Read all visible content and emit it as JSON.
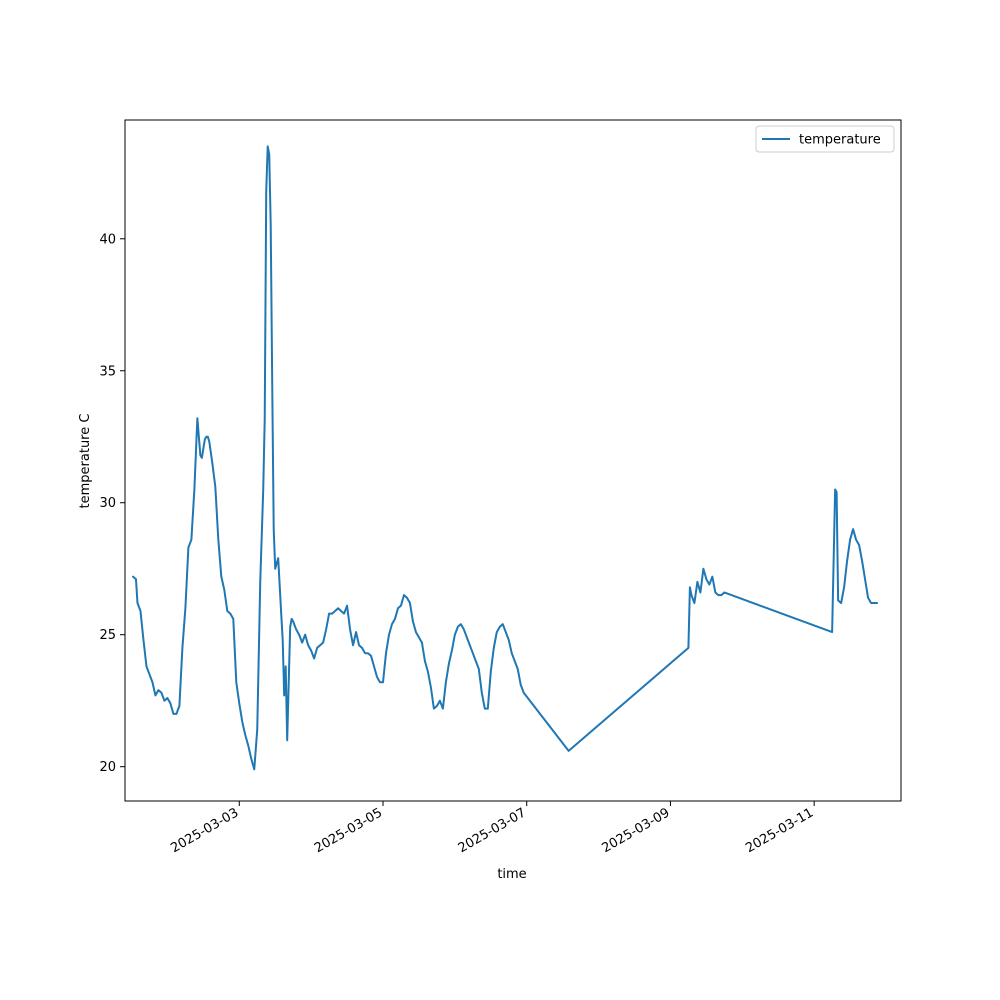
{
  "chart_data": {
    "type": "line",
    "xlabel": "time",
    "ylabel": "temperature C",
    "xlim": [
      "2025-03-01T09:50",
      "2025-03-12T05:00"
    ],
    "ylim": [
      18.7,
      44.5
    ],
    "x_ticks": [
      "2025-03-03",
      "2025-03-05",
      "2025-03-07",
      "2025-03-09",
      "2025-03-11"
    ],
    "y_ticks": [
      20,
      25,
      30,
      35,
      40
    ],
    "grid": false,
    "legend": {
      "position": "top-right",
      "entries": [
        "temperature"
      ]
    },
    "colors": {
      "temperature": "#1f77b4"
    },
    "series": [
      {
        "name": "temperature",
        "x": [
          "2025-03-01T12:30",
          "2025-03-01T13:30",
          "2025-03-01T14:00",
          "2025-03-01T15:00",
          "2025-03-01T16:00",
          "2025-03-01T17:00",
          "2025-03-01T18:00",
          "2025-03-01T19:00",
          "2025-03-01T20:00",
          "2025-03-01T21:00",
          "2025-03-01T22:00",
          "2025-03-01T23:00",
          "2025-03-02T00:00",
          "2025-03-02T01:00",
          "2025-03-02T02:00",
          "2025-03-02T03:00",
          "2025-03-02T04:00",
          "2025-03-02T05:00",
          "2025-03-02T06:00",
          "2025-03-02T07:00",
          "2025-03-02T08:00",
          "2025-03-02T09:00",
          "2025-03-02T10:00",
          "2025-03-02T11:00",
          "2025-03-02T11:30",
          "2025-03-02T12:30",
          "2025-03-02T13:00",
          "2025-03-02T13:30",
          "2025-03-02T14:00",
          "2025-03-02T15:00",
          "2025-03-02T16:00",
          "2025-03-02T17:00",
          "2025-03-02T18:00",
          "2025-03-02T19:00",
          "2025-03-02T20:00",
          "2025-03-02T21:00",
          "2025-03-02T22:00",
          "2025-03-02T23:00",
          "2025-03-03T00:00",
          "2025-03-03T01:00",
          "2025-03-03T02:00",
          "2025-03-03T03:00",
          "2025-03-03T04:00",
          "2025-03-03T05:00",
          "2025-03-03T06:00",
          "2025-03-03T07:00",
          "2025-03-03T08:00",
          "2025-03-03T08:30",
          "2025-03-03T09:00",
          "2025-03-03T09:30",
          "2025-03-03T10:00",
          "2025-03-03T10:30",
          "2025-03-03T11:00",
          "2025-03-03T11:30",
          "2025-03-03T12:00",
          "2025-03-03T13:00",
          "2025-03-03T14:00",
          "2025-03-03T14:30",
          "2025-03-03T15:00",
          "2025-03-03T15:30",
          "2025-03-03T16:00",
          "2025-03-03T17:00",
          "2025-03-03T17:30",
          "2025-03-03T18:00",
          "2025-03-03T19:00",
          "2025-03-03T20:00",
          "2025-03-03T21:00",
          "2025-03-03T22:00",
          "2025-03-03T23:00",
          "2025-03-04T00:00",
          "2025-03-04T01:00",
          "2025-03-04T02:00",
          "2025-03-04T03:00",
          "2025-03-04T04:00",
          "2025-03-04T05:00",
          "2025-03-04T06:00",
          "2025-03-04T07:00",
          "2025-03-04T08:00",
          "2025-03-04T09:00",
          "2025-03-04T10:00",
          "2025-03-04T11:00",
          "2025-03-04T12:00",
          "2025-03-04T13:00",
          "2025-03-04T14:00",
          "2025-03-04T15:00",
          "2025-03-04T16:00",
          "2025-03-04T17:00",
          "2025-03-04T18:00",
          "2025-03-04T19:00",
          "2025-03-04T20:00",
          "2025-03-04T21:00",
          "2025-03-04T22:00",
          "2025-03-04T23:00",
          "2025-03-05T00:00",
          "2025-03-05T01:00",
          "2025-03-05T02:00",
          "2025-03-05T03:00",
          "2025-03-05T04:00",
          "2025-03-05T05:00",
          "2025-03-05T06:00",
          "2025-03-05T07:00",
          "2025-03-05T08:00",
          "2025-03-05T09:00",
          "2025-03-05T10:00",
          "2025-03-05T11:00",
          "2025-03-05T12:00",
          "2025-03-05T13:00",
          "2025-03-05T14:00",
          "2025-03-05T15:00",
          "2025-03-05T16:00",
          "2025-03-05T17:00",
          "2025-03-05T18:00",
          "2025-03-05T19:00",
          "2025-03-05T20:00",
          "2025-03-05T21:00",
          "2025-03-05T22:00",
          "2025-03-05T23:00",
          "2025-03-06T00:00",
          "2025-03-06T01:00",
          "2025-03-06T02:00",
          "2025-03-06T03:00",
          "2025-03-06T04:00",
          "2025-03-06T05:00",
          "2025-03-06T06:00",
          "2025-03-06T07:00",
          "2025-03-06T08:00",
          "2025-03-06T09:00",
          "2025-03-06T10:00",
          "2025-03-06T11:00",
          "2025-03-06T12:00",
          "2025-03-06T13:00",
          "2025-03-06T14:00",
          "2025-03-06T15:00",
          "2025-03-06T16:00",
          "2025-03-06T17:00",
          "2025-03-06T18:00",
          "2025-03-06T19:00",
          "2025-03-06T20:00",
          "2025-03-06T21:00",
          "2025-03-06T22:00",
          "2025-03-06T23:00",
          "2025-03-07T14:00",
          "2025-03-09T06:00",
          "2025-03-09T06:30",
          "2025-03-09T07:00",
          "2025-03-09T08:00",
          "2025-03-09T09:00",
          "2025-03-09T10:00",
          "2025-03-09T11:00",
          "2025-03-09T12:00",
          "2025-03-09T13:00",
          "2025-03-09T14:00",
          "2025-03-09T15:00",
          "2025-03-09T16:00",
          "2025-03-09T17:00",
          "2025-03-09T18:00",
          "2025-03-11T06:00",
          "2025-03-11T07:00",
          "2025-03-11T07:30",
          "2025-03-11T08:00",
          "2025-03-11T09:00",
          "2025-03-11T10:00",
          "2025-03-11T11:00",
          "2025-03-11T12:00",
          "2025-03-11T13:00",
          "2025-03-11T14:00",
          "2025-03-11T15:00",
          "2025-03-11T16:00",
          "2025-03-11T17:00",
          "2025-03-11T18:00",
          "2025-03-11T19:00",
          "2025-03-11T20:00",
          "2025-03-11T21:00"
        ],
        "y": [
          27.2,
          27.1,
          26.2,
          25.9,
          24.8,
          23.8,
          23.5,
          23.2,
          22.7,
          22.9,
          22.8,
          22.5,
          22.6,
          22.4,
          22.0,
          22.0,
          22.3,
          24.5,
          26.0,
          28.3,
          28.6,
          30.5,
          33.2,
          31.8,
          31.7,
          32.4,
          32.5,
          32.5,
          32.3,
          31.5,
          30.6,
          28.6,
          27.2,
          26.7,
          25.9,
          25.8,
          25.6,
          23.2,
          22.4,
          21.7,
          21.2,
          20.8,
          20.3,
          19.9,
          21.4,
          27.0,
          30.5,
          33.2,
          41.8,
          43.5,
          43.2,
          40.5,
          34.5,
          29.0,
          27.5,
          27.9,
          25.8,
          24.8,
          22.7,
          23.8,
          21.0,
          25.3,
          25.6,
          25.5,
          25.2,
          25.0,
          24.7,
          25.0,
          24.6,
          24.4,
          24.1,
          24.5,
          24.6,
          24.7,
          25.2,
          25.8,
          25.8,
          25.9,
          26.0,
          25.9,
          25.8,
          26.1,
          25.2,
          24.6,
          25.1,
          24.6,
          24.5,
          24.3,
          24.3,
          24.2,
          23.8,
          23.4,
          23.2,
          23.2,
          24.3,
          25.0,
          25.4,
          25.6,
          26.0,
          26.1,
          26.5,
          26.4,
          26.2,
          25.5,
          25.1,
          24.9,
          24.7,
          24.0,
          23.6,
          23.0,
          22.2,
          22.3,
          22.5,
          22.2,
          23.2,
          23.9,
          24.4,
          25.0,
          25.3,
          25.4,
          25.2,
          24.9,
          24.6,
          24.3,
          24.0,
          23.7,
          22.8,
          22.2,
          22.2,
          23.6,
          24.5,
          25.1,
          25.3,
          25.4,
          25.1,
          24.8,
          24.3,
          24.0,
          23.7,
          23.1,
          22.8,
          20.6,
          24.5,
          26.8,
          26.5,
          26.2,
          27.0,
          26.6,
          27.5,
          27.1,
          26.9,
          27.2,
          26.6,
          26.5,
          26.5,
          26.6,
          25.1,
          30.5,
          30.4,
          26.3,
          26.2,
          26.8,
          27.8,
          28.6,
          29.0,
          28.6,
          28.4,
          27.8,
          27.1,
          26.4,
          26.2,
          26.2,
          26.2
        ]
      }
    ]
  }
}
